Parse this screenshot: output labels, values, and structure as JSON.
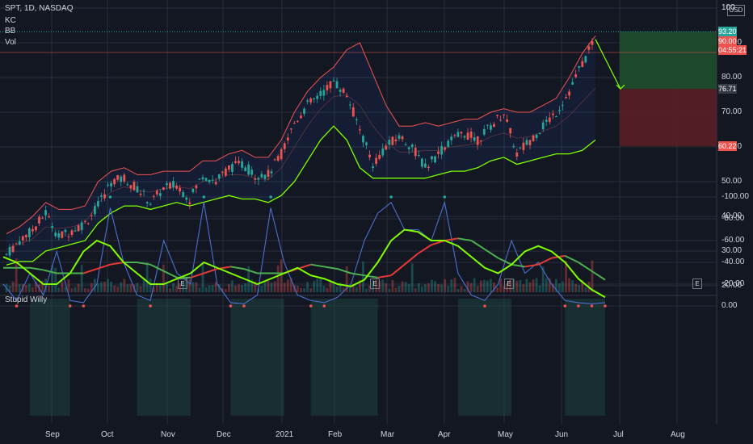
{
  "header": {
    "symbol": "SPT, 1D, NASDAQ",
    "indicators": [
      "KC",
      "BB",
      "Vol"
    ],
    "currency": "USD"
  },
  "oscillator": {
    "title": "Stupid Willy"
  },
  "colors": {
    "bg": "#131722",
    "up": "#26a69a",
    "down": "#ef5350",
    "grid": "#2a2e39",
    "kc": "#ef5350",
    "bb_lower": "#7fff00",
    "willy": "#4a6fd1",
    "long_zone": "#1f4e2e",
    "short_zone": "#5a1f24"
  },
  "chart_data": [
    {
      "type": "candlestick",
      "title": "SPT, 1D, NASDAQ",
      "x_ticks": [
        "Sep",
        "Oct",
        "Nov",
        "Dec",
        "2021",
        "Feb",
        "Mar",
        "Apr",
        "May",
        "Jun",
        "Jul",
        "Aug"
      ],
      "y_ticks": [
        20.0,
        30.0,
        40.0,
        50.0,
        60.0,
        70.0,
        80.0,
        90.0,
        100
      ],
      "ylim": [
        20,
        100
      ],
      "close_path": [
        [
          "Aug 14",
          29
        ],
        [
          "Aug 21",
          33
        ],
        [
          "Aug 28",
          36
        ],
        [
          "Sep 3",
          41
        ],
        [
          "Sep 10",
          34
        ],
        [
          "Sep 17",
          36
        ],
        [
          "Sep 24",
          38
        ],
        [
          "Oct 1",
          43
        ],
        [
          "Oct 8",
          50
        ],
        [
          "Oct 15",
          51
        ],
        [
          "Oct 22",
          48
        ],
        [
          "Oct 29",
          44
        ],
        [
          "Nov 5",
          48
        ],
        [
          "Nov 12",
          49
        ],
        [
          "Nov 19",
          45
        ],
        [
          "Nov 26",
          52
        ],
        [
          "Dec 3",
          50
        ],
        [
          "Dec 10",
          54
        ],
        [
          "Dec 17",
          55
        ],
        [
          "Dec 24",
          52
        ],
        [
          "Dec 31",
          52
        ],
        [
          "Jan 7",
          58
        ],
        [
          "Jan 14",
          67
        ],
        [
          "Jan 21",
          72
        ],
        [
          "Jan 28",
          75
        ],
        [
          "Feb 4",
          79
        ],
        [
          "Feb 11",
          75
        ],
        [
          "Feb 18",
          65
        ],
        [
          "Feb 25",
          55
        ],
        [
          "Mar 4",
          60
        ],
        [
          "Mar 11",
          63
        ],
        [
          "Mar 18",
          60
        ],
        [
          "Mar 25",
          54
        ],
        [
          "Apr 1",
          58
        ],
        [
          "Apr 8",
          62
        ],
        [
          "Apr 15",
          64
        ],
        [
          "Apr 22",
          62
        ],
        [
          "Apr 29",
          66
        ],
        [
          "May 6",
          70
        ],
        [
          "May 13",
          58
        ],
        [
          "May 20",
          62
        ],
        [
          "May 27",
          66
        ],
        [
          "Jun 3",
          70
        ],
        [
          "Jun 10",
          76
        ],
        [
          "Jun 17",
          84
        ],
        [
          "Jun 24",
          91
        ]
      ],
      "keltner_upper": [
        35,
        37,
        40,
        44,
        42,
        42,
        43,
        50,
        53,
        54,
        52,
        52,
        53,
        53,
        53,
        56,
        56,
        58,
        59,
        57,
        57,
        62,
        70,
        76,
        80,
        83,
        88,
        90,
        81,
        72,
        66,
        66,
        67,
        66,
        67,
        68,
        68,
        70,
        71,
        70,
        70,
        72,
        74,
        80,
        87,
        92
      ],
      "bb_lower": [
        26,
        27,
        27,
        30,
        31,
        32,
        33,
        38,
        41,
        43,
        43,
        42,
        43,
        44,
        43,
        44,
        45,
        46,
        45,
        45,
        44,
        46,
        50,
        56,
        62,
        66,
        62,
        54,
        51,
        51,
        51,
        51,
        51,
        52,
        53,
        53,
        54,
        56,
        57,
        55,
        56,
        57,
        58,
        58,
        59,
        62
      ],
      "trade_plan": {
        "entry": 76.71,
        "target": 93.2,
        "stop": 60.22,
        "last_price": 90.0,
        "countdown": "04:55:21"
      },
      "price_labels": [
        "93.20",
        "90.00",
        "04:55:21",
        "76.71",
        "60.22"
      ],
      "earnings_markers": [
        "E",
        "E",
        "E",
        "E"
      ]
    },
    {
      "type": "line",
      "title": "Stupid Willy",
      "y_ticks": [
        0.0,
        -20.0,
        -40.0,
        -60.0,
        -80.0,
        -100.0
      ],
      "ylim": [
        -105,
        3
      ],
      "series": [
        {
          "values": [
            -20,
            -5,
            -30,
            -10,
            -50,
            -5,
            -3,
            -20,
            -90,
            -40,
            -10,
            -5,
            -60,
            -30,
            -20,
            -95,
            -20,
            -3,
            -2,
            -10,
            -90,
            -40,
            -10,
            -5,
            -3,
            -8,
            -20,
            -60,
            -85,
            -95,
            -70,
            -70,
            -60,
            -95,
            -30,
            -10,
            -5,
            -20,
            -60,
            -30,
            -40,
            -20,
            -5,
            -3,
            -2,
            -3
          ]
        },
        {
          "values": [
            -45,
            -40,
            -30,
            -20,
            -20,
            -30,
            -50,
            -60,
            -55,
            -40,
            -30,
            -20,
            -20,
            -25,
            -30,
            -40,
            -35,
            -30,
            -25,
            -20,
            -25,
            -30,
            -35,
            -28,
            -25,
            -20,
            -18,
            -24,
            -40,
            -60,
            -70,
            -68,
            -60,
            -60,
            -55,
            -45,
            -35,
            -30,
            -38,
            -50,
            -55,
            -50,
            -40,
            -25,
            -15,
            -8
          ]
        },
        {
          "values": [
            -35,
            -35,
            -35,
            -33,
            -30,
            -30,
            -30,
            -34,
            -38,
            -40,
            -40,
            -38,
            -32,
            -26,
            -26,
            -30,
            -34,
            -36,
            -34,
            -30,
            -30,
            -30,
            -34,
            -38,
            -36,
            -34,
            -30,
            -28,
            -26,
            -28,
            -38,
            -48,
            -56,
            -60,
            -62,
            -60,
            -52,
            -44,
            -38,
            -36,
            -38,
            -44,
            -46,
            -40,
            -32,
            -24
          ]
        }
      ]
    }
  ]
}
